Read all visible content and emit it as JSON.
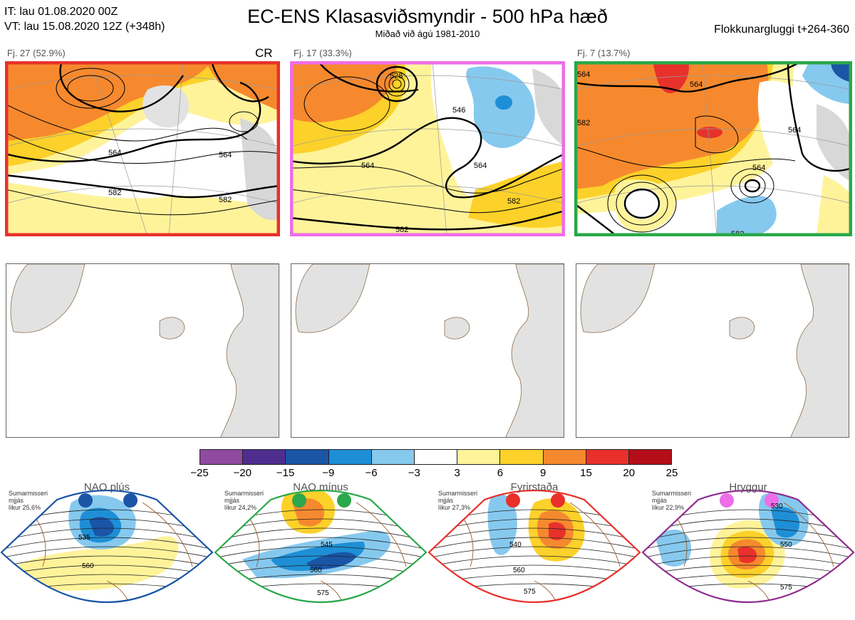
{
  "header": {
    "it_line": "IT: lau 01.08.2020 00Z",
    "vt_line": "VT: lau 15.08.2020 12Z  (+348h)",
    "title": "EC-ENS Klasasviðsmyndir - 500 hPa hæð",
    "subtitle": "Miðað við ágú 1981-2010",
    "window": "Flokkunargluggi t+264-360"
  },
  "clusters": [
    {
      "label": "Fj. 27 (52.9%)",
      "tag": "CR",
      "frame_color": "#e8312b",
      "contours": [
        "564",
        "564",
        "582",
        "582"
      ]
    },
    {
      "label": "Fj. 17 (33.3%)",
      "tag": "",
      "frame_color": "#ee6de8",
      "contours": [
        "528",
        "546",
        "564",
        "564",
        "582",
        "582"
      ]
    },
    {
      "label": "Fj. 7 (13.7%)",
      "tag": "",
      "frame_color": "#2aa84a",
      "contours": [
        "564",
        "564",
        "582",
        "564",
        "564",
        "582"
      ]
    }
  ],
  "colorbar": {
    "colors": [
      "#8e4b9f",
      "#4e2d8f",
      "#1a55a6",
      "#1e8fd6",
      "#86c9ee",
      "#ffffff",
      "#fff39a",
      "#fcd12a",
      "#f6892e",
      "#e8312b",
      "#b30e1a"
    ],
    "ticks": [
      "−25",
      "−20",
      "−15",
      "−9",
      "−6",
      "−3",
      "3",
      "6",
      "9",
      "15",
      "20",
      "25"
    ]
  },
  "regimes": [
    {
      "title": "NAO plús",
      "note": [
        "Sumarmisseri",
        "mjjás",
        "líkur 25,6%"
      ],
      "frame_color": "#1a55a6",
      "dot_color": "#1a55a6",
      "contours": [
        "535",
        "560"
      ]
    },
    {
      "title": "NAO mínus",
      "note": [
        "Sumarmisseri",
        "mjjás",
        "líkur 24,2%"
      ],
      "frame_color": "#2aa84a",
      "dot_color": "#2aa84a",
      "contours": [
        "545",
        "560",
        "575"
      ]
    },
    {
      "title": "Fyrirstaða",
      "note": [
        "Sumarmisseri",
        "mjjás",
        "líkur 27,3%"
      ],
      "frame_color": "#e8312b",
      "dot_color": "#e8312b",
      "contours": [
        "540",
        "560",
        "575"
      ]
    },
    {
      "title": "Hryggur",
      "note": [
        "Sumarmisseri",
        "mjjás",
        "líkur 22,9%"
      ],
      "frame_color": "#8e2c8f",
      "dot_color": "#ee6de8",
      "contours": [
        "530",
        "550",
        "575"
      ]
    }
  ]
}
